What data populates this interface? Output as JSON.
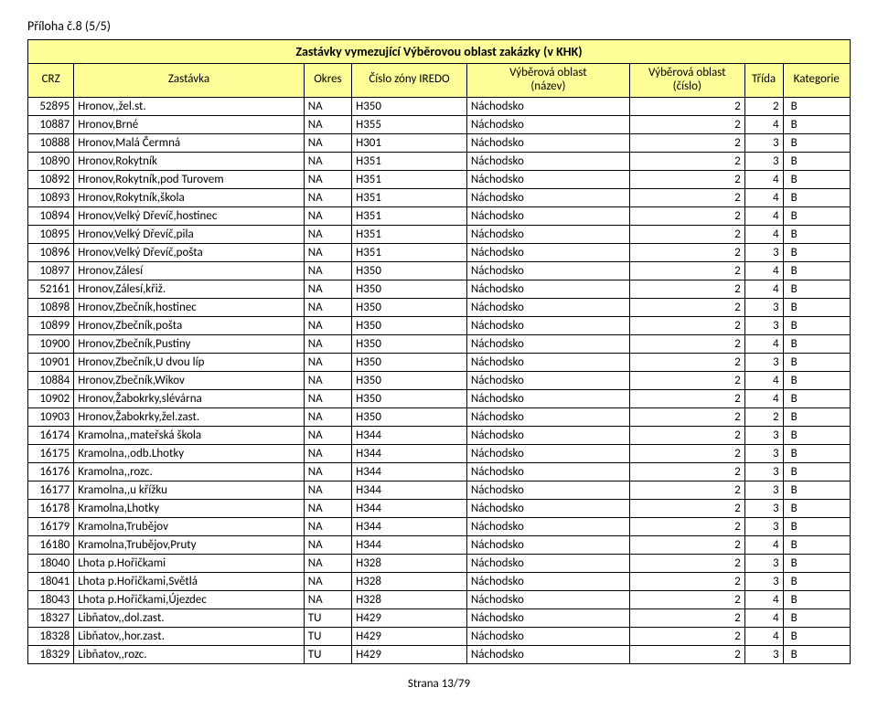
{
  "attachment": "Příloha č.8 (5/5)",
  "title": "Zastávky vymezující Výběrovou oblast zakázky (v KHK)",
  "headers": {
    "crz": "CRZ",
    "stop": "Zastávka",
    "okres": "Okres",
    "zona": "Číslo zóny IREDO",
    "nazev_l1": "Výběrová oblast",
    "nazev_l2": "(název)",
    "cislo_l1": "Výběrová oblast",
    "cislo_l2": "(číslo)",
    "trida": "Třída",
    "kategorie": "Kategorie"
  },
  "rows": [
    {
      "crz": "52895",
      "stop": "Hronov,,žel.st.",
      "okres": "NA",
      "zona": "H350",
      "nazev": "Náchodsko",
      "cislo": "2",
      "trida": "2",
      "kat": "B"
    },
    {
      "crz": "10887",
      "stop": "Hronov,Brné",
      "okres": "NA",
      "zona": "H355",
      "nazev": "Náchodsko",
      "cislo": "2",
      "trida": "4",
      "kat": "B"
    },
    {
      "crz": "10888",
      "stop": "Hronov,Malá Čermná",
      "okres": "NA",
      "zona": "H301",
      "nazev": "Náchodsko",
      "cislo": "2",
      "trida": "3",
      "kat": "B"
    },
    {
      "crz": "10890",
      "stop": "Hronov,Rokytník",
      "okres": "NA",
      "zona": "H351",
      "nazev": "Náchodsko",
      "cislo": "2",
      "trida": "3",
      "kat": "B"
    },
    {
      "crz": "10892",
      "stop": "Hronov,Rokytník,pod Turovem",
      "okres": "NA",
      "zona": "H351",
      "nazev": "Náchodsko",
      "cislo": "2",
      "trida": "4",
      "kat": "B"
    },
    {
      "crz": "10893",
      "stop": "Hronov,Rokytník,škola",
      "okres": "NA",
      "zona": "H351",
      "nazev": "Náchodsko",
      "cislo": "2",
      "trida": "4",
      "kat": "B"
    },
    {
      "crz": "10894",
      "stop": "Hronov,Velký Dřevíč,hostinec",
      "okres": "NA",
      "zona": "H351",
      "nazev": "Náchodsko",
      "cislo": "2",
      "trida": "4",
      "kat": "B"
    },
    {
      "crz": "10895",
      "stop": "Hronov,Velký Dřevíč,pila",
      "okres": "NA",
      "zona": "H351",
      "nazev": "Náchodsko",
      "cislo": "2",
      "trida": "4",
      "kat": "B"
    },
    {
      "crz": "10896",
      "stop": "Hronov,Velký Dřevíč,pošta",
      "okres": "NA",
      "zona": "H351",
      "nazev": "Náchodsko",
      "cislo": "2",
      "trida": "3",
      "kat": "B"
    },
    {
      "crz": "10897",
      "stop": "Hronov,Zálesí",
      "okres": "NA",
      "zona": "H350",
      "nazev": "Náchodsko",
      "cislo": "2",
      "trida": "4",
      "kat": "B"
    },
    {
      "crz": "52161",
      "stop": "Hronov,Zálesí,křiž.",
      "okres": "NA",
      "zona": "H350",
      "nazev": "Náchodsko",
      "cislo": "2",
      "trida": "4",
      "kat": "B"
    },
    {
      "crz": "10898",
      "stop": "Hronov,Zbečník,hostinec",
      "okres": "NA",
      "zona": "H350",
      "nazev": "Náchodsko",
      "cislo": "2",
      "trida": "3",
      "kat": "B"
    },
    {
      "crz": "10899",
      "stop": "Hronov,Zbečník,pošta",
      "okres": "NA",
      "zona": "H350",
      "nazev": "Náchodsko",
      "cislo": "2",
      "trida": "3",
      "kat": "B"
    },
    {
      "crz": "10900",
      "stop": "Hronov,Zbečník,Pustiny",
      "okres": "NA",
      "zona": "H350",
      "nazev": "Náchodsko",
      "cislo": "2",
      "trida": "4",
      "kat": "B"
    },
    {
      "crz": "10901",
      "stop": "Hronov,Zbečník,U dvou líp",
      "okres": "NA",
      "zona": "H350",
      "nazev": "Náchodsko",
      "cislo": "2",
      "trida": "3",
      "kat": "B"
    },
    {
      "crz": "10884",
      "stop": "Hronov,Zbečník,Wikov",
      "okres": "NA",
      "zona": "H350",
      "nazev": "Náchodsko",
      "cislo": "2",
      "trida": "4",
      "kat": "B"
    },
    {
      "crz": "10902",
      "stop": "Hronov,Žabokrky,slévárna",
      "okres": "NA",
      "zona": "H350",
      "nazev": "Náchodsko",
      "cislo": "2",
      "trida": "4",
      "kat": "B"
    },
    {
      "crz": "10903",
      "stop": "Hronov,Žabokrky,žel.zast.",
      "okres": "NA",
      "zona": "H350",
      "nazev": "Náchodsko",
      "cislo": "2",
      "trida": "2",
      "kat": "B"
    },
    {
      "crz": "16174",
      "stop": "Kramolna,,mateřská škola",
      "okres": "NA",
      "zona": "H344",
      "nazev": "Náchodsko",
      "cislo": "2",
      "trida": "3",
      "kat": "B"
    },
    {
      "crz": "16175",
      "stop": "Kramolna,,odb.Lhotky",
      "okres": "NA",
      "zona": "H344",
      "nazev": "Náchodsko",
      "cislo": "2",
      "trida": "3",
      "kat": "B"
    },
    {
      "crz": "16176",
      "stop": "Kramolna,,rozc.",
      "okres": "NA",
      "zona": "H344",
      "nazev": "Náchodsko",
      "cislo": "2",
      "trida": "3",
      "kat": "B"
    },
    {
      "crz": "16177",
      "stop": "Kramolna,,u křížku",
      "okres": "NA",
      "zona": "H344",
      "nazev": "Náchodsko",
      "cislo": "2",
      "trida": "3",
      "kat": "B"
    },
    {
      "crz": "16178",
      "stop": "Kramolna,Lhotky",
      "okres": "NA",
      "zona": "H344",
      "nazev": "Náchodsko",
      "cislo": "2",
      "trida": "3",
      "kat": "B"
    },
    {
      "crz": "16179",
      "stop": "Kramolna,Trubějov",
      "okres": "NA",
      "zona": "H344",
      "nazev": "Náchodsko",
      "cislo": "2",
      "trida": "3",
      "kat": "B"
    },
    {
      "crz": "16180",
      "stop": "Kramolna,Trubějov,Pruty",
      "okres": "NA",
      "zona": "H344",
      "nazev": "Náchodsko",
      "cislo": "2",
      "trida": "4",
      "kat": "B"
    },
    {
      "crz": "18040",
      "stop": "Lhota p.Hořičkami",
      "okres": "NA",
      "zona": "H328",
      "nazev": "Náchodsko",
      "cislo": "2",
      "trida": "3",
      "kat": "B"
    },
    {
      "crz": "18041",
      "stop": "Lhota p.Hořičkami,Světlá",
      "okres": "NA",
      "zona": "H328",
      "nazev": "Náchodsko",
      "cislo": "2",
      "trida": "3",
      "kat": "B"
    },
    {
      "crz": "18043",
      "stop": "Lhota p.Hořičkami,Újezdec",
      "okres": "NA",
      "zona": "H328",
      "nazev": "Náchodsko",
      "cislo": "2",
      "trida": "4",
      "kat": "B"
    },
    {
      "crz": "18327",
      "stop": "Libňatov,,dol.zast.",
      "okres": "TU",
      "zona": "H429",
      "nazev": "Náchodsko",
      "cislo": "2",
      "trida": "4",
      "kat": "B"
    },
    {
      "crz": "18328",
      "stop": "Libňatov,,hor.zast.",
      "okres": "TU",
      "zona": "H429",
      "nazev": "Náchodsko",
      "cislo": "2",
      "trida": "4",
      "kat": "B"
    },
    {
      "crz": "18329",
      "stop": "Libňatov,,rozc.",
      "okres": "TU",
      "zona": "H429",
      "nazev": "Náchodsko",
      "cislo": "2",
      "trida": "3",
      "kat": "B"
    }
  ],
  "footer": "Strana 13/79"
}
